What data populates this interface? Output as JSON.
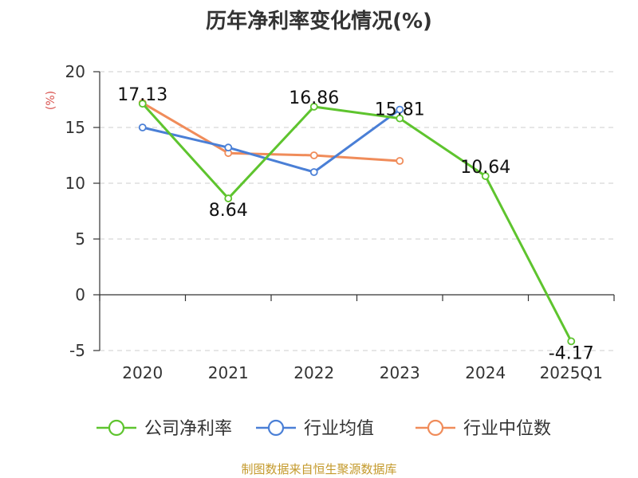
{
  "title": "历年净利率变化情况(%)",
  "source": "制图数据来自恒生聚源数据库",
  "chart_data": {
    "type": "line",
    "title": "历年净利率变化情况(%)",
    "unit": "(%)",
    "categories": [
      "2020",
      "2021",
      "2022",
      "2023",
      "2024",
      "2025Q1"
    ],
    "ylim": [
      -5,
      20
    ],
    "yticks": [
      -5,
      0,
      5,
      10,
      15,
      20
    ],
    "grid": true,
    "legend_position": "bottom",
    "series": [
      {
        "name": "公司净利率",
        "color": "#5ec42e",
        "values": [
          17.13,
          8.64,
          16.86,
          15.81,
          10.64,
          -4.17
        ],
        "labels": [
          "17.13",
          "8.64",
          "16.86",
          "15.81",
          "10.64",
          "-4.17"
        ]
      },
      {
        "name": "行业均值",
        "color": "#4a7fd6",
        "values": [
          15.0,
          13.2,
          11.0,
          16.6,
          null,
          null
        ]
      },
      {
        "name": "行业中位数",
        "color": "#f08c5a",
        "values": [
          17.2,
          12.7,
          12.5,
          12.0,
          null,
          null
        ]
      }
    ]
  }
}
